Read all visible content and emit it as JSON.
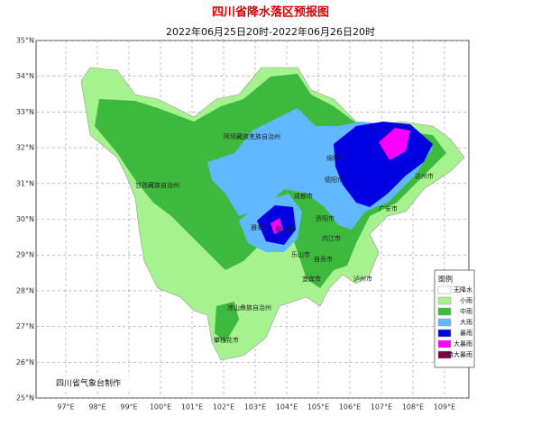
{
  "header": {
    "title": "四川省降水落区预报图",
    "subtitle": "2022年06月25日20时-2022年06月26日20时"
  },
  "map": {
    "lat_ticks": [
      {
        "value": 35,
        "label": "35°N"
      },
      {
        "value": 34,
        "label": "34°N"
      },
      {
        "value": 33,
        "label": "33°N"
      },
      {
        "value": 32,
        "label": "32°N"
      },
      {
        "value": 31,
        "label": "31°N"
      },
      {
        "value": 30,
        "label": "30°N"
      },
      {
        "value": 29,
        "label": "29°N"
      },
      {
        "value": 28,
        "label": "28°N"
      },
      {
        "value": 27,
        "label": "27°N"
      },
      {
        "value": 26,
        "label": "26°N"
      },
      {
        "value": 25,
        "label": "25°N"
      }
    ],
    "lon_ticks": [
      {
        "value": 97,
        "label": "97°E"
      },
      {
        "value": 98,
        "label": "98°E"
      },
      {
        "value": 99,
        "label": "99°E"
      },
      {
        "value": 100,
        "label": "100°E"
      },
      {
        "value": 101,
        "label": "101°E"
      },
      {
        "value": 102,
        "label": "102°E"
      },
      {
        "value": 103,
        "label": "103°E"
      },
      {
        "value": 104,
        "label": "104°E"
      },
      {
        "value": 105,
        "label": "105°E"
      },
      {
        "value": 106,
        "label": "106°E"
      },
      {
        "value": 107,
        "label": "107°E"
      },
      {
        "value": 108,
        "label": "108°E"
      },
      {
        "value": 109,
        "label": "109°E"
      }
    ],
    "places": [
      "阿坝藏族羌族自治州",
      "甘孜藏族自治州",
      "绵阳市",
      "德阳市",
      "成都市",
      "雅安市",
      "眉山市",
      "乐山市",
      "资阳市",
      "内江市",
      "自贡市",
      "宜宾市",
      "泸州市",
      "凉山彝族自治州",
      "攀枝花市",
      "达州市",
      "广安市"
    ],
    "credit": "四川省气象台制作"
  },
  "legend": {
    "title": "图例",
    "items": [
      {
        "label": "无降水",
        "color": "#ffffff"
      },
      {
        "label": "小雨",
        "color": "#a6f28f"
      },
      {
        "label": "中雨",
        "color": "#3dba3d"
      },
      {
        "label": "大雨",
        "color": "#61b8ff"
      },
      {
        "label": "暴雨",
        "color": "#0000e1"
      },
      {
        "label": "大暴雨",
        "color": "#fa00fa"
      },
      {
        "label": "特大暴雨",
        "color": "#800040"
      }
    ]
  }
}
